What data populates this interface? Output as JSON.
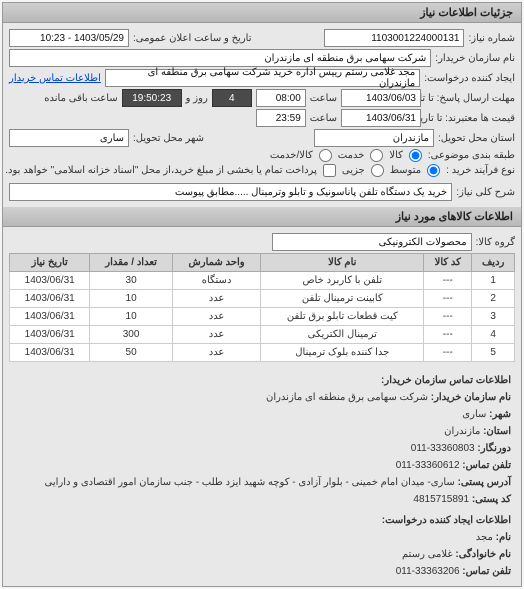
{
  "header": {
    "title": "جزئیات اطلاعات نیاز"
  },
  "general": {
    "need_no_lbl": "شماره نیاز:",
    "need_no": "1103001224000131",
    "announce_lbl": "تاریخ و ساعت اعلان عمومی:",
    "announce_val": "1403/05/29 - 10:23",
    "buyer_name_lbl": "نام سازمان خریدار:",
    "buyer_name": "شرکت سهامی برق منطقه ای مازندران",
    "requester_lbl": "ایجاد کننده درخواست:",
    "requester": "مجد غلامی رستم رییس اداره خرید شرکت سهامی برق منطقه ای مازندران",
    "buyer_contact_link": "اطلاعات تماس خریدار",
    "deadline_to_lbl": "مهلت ارسال پاسخ: تا تاریخ:",
    "deadline_date": "1403/06/03",
    "time_lbl": "ساعت",
    "deadline_time": "08:00",
    "remain_days": "4",
    "remain_days_lbl": "روز و",
    "remain_time": "19:50:23",
    "remain_suffix": "ساعت باقی مانده",
    "price_valid_lbl": "قیمت ها معتبرند: تا تاریخ:",
    "price_date": "1403/06/31",
    "price_time": "23:59",
    "deliver_province_lbl": "استان محل تحویل:",
    "deliver_province": "مازندران",
    "deliver_city_lbl": "شهر محل تحویل:",
    "deliver_city": "ساری",
    "budget_lbl": "طبقه بندی موضوعی:",
    "opt_goods": "کالا",
    "opt_service": "خدمت",
    "opt_goods_service": "کالا/خدمت",
    "process_lbl": "نوع فرآیند خرید :",
    "opt_medium": "متوسط",
    "opt_partial": "جزیی",
    "pay_note": "پرداخت تمام یا بخشی از مبلغ خرید،از محل \"اسناد خزانه اسلامی\" خواهد بود.",
    "subject_lbl": "شرح کلی نیاز:",
    "subject": "خرید یک دستگاه تلفن پاناسونیک و تابلو وترمینال .....مطابق پیوست"
  },
  "goods": {
    "title": "اطلاعات کالاهای مورد نیاز",
    "category_lbl": "گروه کالا:",
    "category": "محصولات الکترونیکی",
    "columns": [
      "ردیف",
      "کد کالا",
      "نام کالا",
      "واحد شمارش",
      "تعداد / مقدار",
      "تاریخ نیاز"
    ],
    "rows": [
      [
        "1",
        "---",
        "تلفن با کاربرد خاص",
        "دستگاه",
        "30",
        "1403/06/31"
      ],
      [
        "2",
        "---",
        "کابینت ترمینال تلفن",
        "عدد",
        "10",
        "1403/06/31"
      ],
      [
        "3",
        "---",
        "کیت قطعات تابلو برق تلفن",
        "عدد",
        "10",
        "1403/06/31"
      ],
      [
        "4",
        "---",
        "ترمینال الکتریکی",
        "عدد",
        "300",
        "1403/06/31"
      ],
      [
        "5",
        "---",
        "جدا کننده بلوک ترمینال",
        "عدد",
        "50",
        "1403/06/31"
      ]
    ]
  },
  "contact": {
    "title": "اطلاعات تماس سازمان خریدار:",
    "org_lbl": "نام سازمان خریدار:",
    "org": "شرکت سهامی برق منطقه ای مازندران",
    "city_lbl": "شهر:",
    "city": "ساری",
    "province_lbl": "استان:",
    "province": "مازندران",
    "fax_lbl": "دورنگار:",
    "fax": "33360803-011",
    "phone_lbl": "تلفن تماس:",
    "phone": "33360612-011",
    "addr_lbl": "آدرس پستی:",
    "addr": "ساری- میدان امام خمینی - بلوار آزادی - کوچه شهید ایزد طلب - جنب سازمان امور اقتصادی و دارایی",
    "postal_lbl": "کد پستی:",
    "postal": "4815715891",
    "creator_title": "اطلاعات ایجاد کننده درخواست:",
    "fname_lbl": "نام:",
    "fname": "مجد",
    "lname_lbl": "نام خانوادگی:",
    "lname": "غلامی رستم",
    "cphone_lbl": "تلفن تماس:",
    "cphone": "33363206-011"
  },
  "style": {
    "bg": "#e8e8e8",
    "field_bg": "#ffffff",
    "dark_bg": "#4a4a4a",
    "border": "#999999",
    "header_grad_a": "#d0d0d0",
    "header_grad_b": "#b8b8b8"
  }
}
